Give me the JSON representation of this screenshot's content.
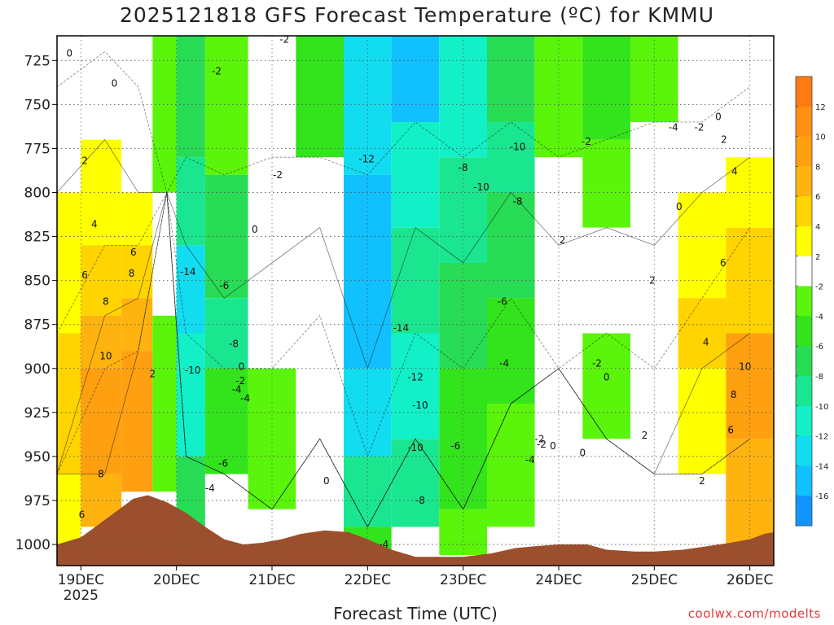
{
  "title": "2025121818 GFS Forecast Temperature (ºC) for KMMU",
  "xlabel": "Forecast Time (UTC)",
  "credit": "coolwx.com/modelts",
  "colors": {
    "terrain": "#9c4f2d",
    "zero_line": "#c02a6a",
    "contour": "#111111",
    "grid": "#555555"
  },
  "chart_data": {
    "type": "heatmap",
    "title": "2025121818 GFS Forecast Temperature (ºC) for KMMU",
    "xlabel": "Forecast Time (UTC)",
    "ylabel": "",
    "x_ticks": [
      "19DEC\n2025",
      "20DEC",
      "21DEC",
      "22DEC",
      "23DEC",
      "24DEC",
      "25DEC",
      "26DEC"
    ],
    "x_days": [
      0,
      1,
      2,
      3,
      4,
      5,
      6,
      7
    ],
    "xlim": [
      -0.25,
      7.25
    ],
    "y_ticks": [
      725,
      750,
      775,
      800,
      825,
      850,
      875,
      900,
      925,
      950,
      975,
      1000
    ],
    "ylim": [
      1012,
      711
    ],
    "y_scale": "linear-inverted",
    "grid": "dotted",
    "colorbar": {
      "ticks": [
        12,
        10,
        8,
        6,
        4,
        2,
        -2,
        -4,
        -6,
        -8,
        -10,
        -12,
        -14,
        -16
      ],
      "bins": [
        {
          "from": 12,
          "to": 14,
          "color": "#ff7a10"
        },
        {
          "from": 10,
          "to": 12,
          "color": "#ff9010"
        },
        {
          "from": 8,
          "to": 10,
          "color": "#ffa010"
        },
        {
          "from": 6,
          "to": 8,
          "color": "#ffb30f"
        },
        {
          "from": 4,
          "to": 6,
          "color": "#ffd400"
        },
        {
          "from": 2,
          "to": 4,
          "color": "#ffff00"
        },
        {
          "from": -2,
          "to": 2,
          "color": "#ffffff"
        },
        {
          "from": -4,
          "to": -2,
          "color": "#5af50a"
        },
        {
          "from": -6,
          "to": -4,
          "color": "#33e31c"
        },
        {
          "from": -8,
          "to": -6,
          "color": "#28dc56"
        },
        {
          "from": -10,
          "to": -8,
          "color": "#1be690"
        },
        {
          "from": -12,
          "to": -10,
          "color": "#12f0c8"
        },
        {
          "from": -14,
          "to": -12,
          "color": "#11dcf0"
        },
        {
          "from": -16,
          "to": -14,
          "color": "#10c0ff"
        },
        {
          "from": -18,
          "to": -16,
          "color": "#1294ff"
        }
      ]
    },
    "temperature_columns": [
      {
        "day": -0.25,
        "bands": [
          [
            711,
            740,
            "0"
          ],
          [
            740,
            800,
            "2"
          ],
          [
            800,
            880,
            "4"
          ],
          [
            880,
            960,
            "6"
          ],
          [
            960,
            1006,
            "4"
          ]
        ]
      },
      {
        "day": 0.25,
        "bands": [
          [
            711,
            720,
            "0"
          ],
          [
            720,
            770,
            "2"
          ],
          [
            770,
            830,
            "4"
          ],
          [
            830,
            870,
            "6"
          ],
          [
            870,
            900,
            "8"
          ],
          [
            900,
            960,
            "10"
          ],
          [
            960,
            990,
            "8"
          ]
        ]
      },
      {
        "day": 0.6,
        "bands": [
          [
            711,
            740,
            "0"
          ],
          [
            740,
            800,
            "2"
          ],
          [
            800,
            830,
            "4"
          ],
          [
            830,
            860,
            "6"
          ],
          [
            860,
            890,
            "8"
          ],
          [
            890,
            970,
            "10"
          ]
        ]
      },
      {
        "day": 0.9,
        "bands": [
          [
            711,
            970,
            "-2"
          ],
          [
            800,
            870,
            "0"
          ]
        ]
      },
      {
        "day": 1.1,
        "bands": [
          [
            711,
            780,
            "-6"
          ],
          [
            780,
            830,
            "-8"
          ],
          [
            830,
            880,
            "-12"
          ],
          [
            880,
            950,
            "-10"
          ],
          [
            950,
            990,
            "-6"
          ]
        ]
      },
      {
        "day": 1.5,
        "bands": [
          [
            711,
            790,
            "-2"
          ],
          [
            790,
            860,
            "-6"
          ],
          [
            860,
            900,
            "-8"
          ],
          [
            900,
            960,
            "-4"
          ],
          [
            960,
            990,
            "0"
          ]
        ]
      },
      {
        "day": 2.0,
        "bands": [
          [
            711,
            780,
            "0"
          ],
          [
            780,
            840,
            "2"
          ],
          [
            840,
            900,
            "0"
          ],
          [
            900,
            980,
            "-2"
          ],
          [
            980,
            1000,
            "0"
          ]
        ]
      },
      {
        "day": 2.5,
        "bands": [
          [
            711,
            780,
            "-4"
          ],
          [
            780,
            820,
            "0"
          ],
          [
            820,
            870,
            "2"
          ],
          [
            870,
            940,
            "0"
          ],
          [
            940,
            990,
            "0"
          ]
        ]
      },
      {
        "day": 3.0,
        "bands": [
          [
            711,
            790,
            "-12"
          ],
          [
            790,
            900,
            "-14"
          ],
          [
            900,
            950,
            "-12"
          ],
          [
            950,
            990,
            "-8"
          ],
          [
            990,
            1004,
            "-4"
          ]
        ]
      },
      {
        "day": 3.5,
        "bands": [
          [
            711,
            760,
            "-14"
          ],
          [
            760,
            820,
            "-10"
          ],
          [
            820,
            880,
            "-8"
          ],
          [
            880,
            940,
            "-10"
          ],
          [
            940,
            990,
            "-8"
          ]
        ]
      },
      {
        "day": 4.0,
        "bands": [
          [
            711,
            780,
            "-10"
          ],
          [
            780,
            840,
            "-8"
          ],
          [
            840,
            900,
            "-6"
          ],
          [
            900,
            980,
            "-4"
          ],
          [
            980,
            1006,
            "-2"
          ]
        ]
      },
      {
        "day": 4.5,
        "bands": [
          [
            711,
            760,
            "-6"
          ],
          [
            760,
            800,
            "-8"
          ],
          [
            800,
            860,
            "-6"
          ],
          [
            860,
            920,
            "-4"
          ],
          [
            920,
            990,
            "-2"
          ]
        ]
      },
      {
        "day": 5.0,
        "bands": [
          [
            711,
            780,
            "-2"
          ],
          [
            780,
            830,
            "0"
          ],
          [
            830,
            900,
            "0"
          ],
          [
            900,
            1000,
            "0"
          ]
        ]
      },
      {
        "day": 5.5,
        "bands": [
          [
            711,
            770,
            "-4"
          ],
          [
            770,
            820,
            "-2"
          ],
          [
            820,
            880,
            "0"
          ],
          [
            880,
            940,
            "-2"
          ],
          [
            940,
            1000,
            "0"
          ]
        ]
      },
      {
        "day": 6.0,
        "bands": [
          [
            711,
            760,
            "-2"
          ],
          [
            760,
            830,
            "0"
          ],
          [
            830,
            900,
            "2"
          ],
          [
            900,
            960,
            "2"
          ],
          [
            960,
            1004,
            "0"
          ]
        ]
      },
      {
        "day": 6.5,
        "bands": [
          [
            711,
            760,
            "0"
          ],
          [
            760,
            800,
            "2"
          ],
          [
            800,
            860,
            "4"
          ],
          [
            860,
            900,
            "6"
          ],
          [
            900,
            960,
            "4"
          ],
          [
            960,
            1004,
            "2"
          ]
        ]
      },
      {
        "day": 7.0,
        "bands": [
          [
            711,
            740,
            "0"
          ],
          [
            740,
            780,
            "2"
          ],
          [
            780,
            820,
            "4"
          ],
          [
            820,
            880,
            "6"
          ],
          [
            880,
            940,
            "10"
          ],
          [
            940,
            1000,
            "8"
          ]
        ]
      }
    ],
    "contour_labels": [
      {
        "text": "0",
        "day": -0.12,
        "hpa": 721
      },
      {
        "text": "0",
        "day": 0.35,
        "hpa": 738
      },
      {
        "text": "2",
        "day": 0.04,
        "hpa": 782
      },
      {
        "text": "4",
        "day": 0.14,
        "hpa": 818
      },
      {
        "text": "6",
        "day": 0.04,
        "hpa": 847
      },
      {
        "text": "6",
        "day": 0.55,
        "hpa": 834
      },
      {
        "text": "8",
        "day": 0.26,
        "hpa": 862
      },
      {
        "text": "8",
        "day": 0.53,
        "hpa": 846
      },
      {
        "text": "10",
        "day": 0.26,
        "hpa": 893
      },
      {
        "text": "8",
        "day": 0.21,
        "hpa": 960
      },
      {
        "text": "6",
        "day": 0.01,
        "hpa": 983
      },
      {
        "text": "2",
        "day": 0.75,
        "hpa": 903
      },
      {
        "text": "-2",
        "day": 1.42,
        "hpa": 731
      },
      {
        "text": "-2",
        "day": 2.06,
        "hpa": 790
      },
      {
        "text": "-2",
        "day": 2.13,
        "hpa": 713
      },
      {
        "text": "0",
        "day": 1.82,
        "hpa": 821
      },
      {
        "text": "-14",
        "day": 1.12,
        "hpa": 845
      },
      {
        "text": "-6",
        "day": 1.5,
        "hpa": 853
      },
      {
        "text": "-8",
        "day": 1.6,
        "hpa": 886
      },
      {
        "text": "-10",
        "day": 1.17,
        "hpa": 901
      },
      {
        "text": "0",
        "day": 1.68,
        "hpa": 899
      },
      {
        "text": "-2",
        "day": 1.67,
        "hpa": 907
      },
      {
        "text": "-4",
        "day": 1.63,
        "hpa": 912
      },
      {
        "text": "-4",
        "day": 1.72,
        "hpa": 917
      },
      {
        "text": "-6",
        "day": 1.49,
        "hpa": 954
      },
      {
        "text": "-4",
        "day": 1.35,
        "hpa": 968
      },
      {
        "text": "0",
        "day": 2.57,
        "hpa": 964
      },
      {
        "text": "-12",
        "day": 2.99,
        "hpa": 781
      },
      {
        "text": "-14",
        "day": 3.35,
        "hpa": 877
      },
      {
        "text": "-12",
        "day": 3.5,
        "hpa": 905
      },
      {
        "text": "-10",
        "day": 3.55,
        "hpa": 921
      },
      {
        "text": "-10",
        "day": 3.5,
        "hpa": 945
      },
      {
        "text": "-6",
        "day": 3.92,
        "hpa": 944
      },
      {
        "text": "-8",
        "day": 3.55,
        "hpa": 975
      },
      {
        "text": "-4",
        "day": 3.17,
        "hpa": 1000
      },
      {
        "text": "-8",
        "day": 4.0,
        "hpa": 786
      },
      {
        "text": "-10",
        "day": 4.19,
        "hpa": 797
      },
      {
        "text": "-10",
        "day": 4.57,
        "hpa": 774
      },
      {
        "text": "-8",
        "day": 4.57,
        "hpa": 805
      },
      {
        "text": "-6",
        "day": 4.41,
        "hpa": 862
      },
      {
        "text": "-4",
        "day": 4.43,
        "hpa": 897
      },
      {
        "text": "-2",
        "day": 4.8,
        "hpa": 940
      },
      {
        "text": "0",
        "day": 4.94,
        "hpa": 944
      },
      {
        "text": "-4",
        "day": 4.7,
        "hpa": 952
      },
      {
        "text": "-2",
        "day": 4.82,
        "hpa": 943
      },
      {
        "text": "2",
        "day": 5.04,
        "hpa": 827
      },
      {
        "text": "-2",
        "day": 5.29,
        "hpa": 771
      },
      {
        "text": "0",
        "day": 5.25,
        "hpa": 948
      },
      {
        "text": "0",
        "day": 6.26,
        "hpa": 808
      },
      {
        "text": "-2",
        "day": 5.4,
        "hpa": 897
      },
      {
        "text": "0",
        "day": 5.5,
        "hpa": 905
      },
      {
        "text": "-4",
        "day": 6.2,
        "hpa": 763
      },
      {
        "text": "-2",
        "day": 6.47,
        "hpa": 763
      },
      {
        "text": "0",
        "day": 6.67,
        "hpa": 757
      },
      {
        "text": "2",
        "day": 5.98,
        "hpa": 850
      },
      {
        "text": "2",
        "day": 5.9,
        "hpa": 938
      },
      {
        "text": "2",
        "day": 6.5,
        "hpa": 964
      },
      {
        "text": "2",
        "day": 6.73,
        "hpa": 770
      },
      {
        "text": "4",
        "day": 6.84,
        "hpa": 788
      },
      {
        "text": "6",
        "day": 6.72,
        "hpa": 840
      },
      {
        "text": "4",
        "day": 6.54,
        "hpa": 885
      },
      {
        "text": "10",
        "day": 6.95,
        "hpa": 899
      },
      {
        "text": "8",
        "day": 6.83,
        "hpa": 915
      },
      {
        "text": "6",
        "day": 6.8,
        "hpa": 935
      }
    ],
    "terrain_surface_hpa": [
      [
        -0.25,
        1000
      ],
      [
        0.0,
        996
      ],
      [
        0.25,
        986
      ],
      [
        0.55,
        974
      ],
      [
        0.7,
        972
      ],
      [
        0.9,
        976
      ],
      [
        1.1,
        982
      ],
      [
        1.3,
        990
      ],
      [
        1.5,
        997
      ],
      [
        1.7,
        1000
      ],
      [
        1.9,
        999
      ],
      [
        2.1,
        997
      ],
      [
        2.3,
        994
      ],
      [
        2.55,
        992
      ],
      [
        2.8,
        993
      ],
      [
        3.0,
        997
      ],
      [
        3.25,
        1003
      ],
      [
        3.5,
        1007
      ],
      [
        3.75,
        1007
      ],
      [
        4.0,
        1007
      ],
      [
        4.3,
        1005
      ],
      [
        4.55,
        1002
      ],
      [
        4.75,
        1001
      ],
      [
        5.0,
        1000
      ],
      [
        5.3,
        1000
      ],
      [
        5.5,
        1003
      ],
      [
        5.8,
        1004
      ],
      [
        6.0,
        1004
      ],
      [
        6.3,
        1003
      ],
      [
        6.55,
        1001
      ],
      [
        6.8,
        999
      ],
      [
        7.0,
        997
      ],
      [
        7.15,
        994
      ],
      [
        7.25,
        993
      ]
    ]
  }
}
